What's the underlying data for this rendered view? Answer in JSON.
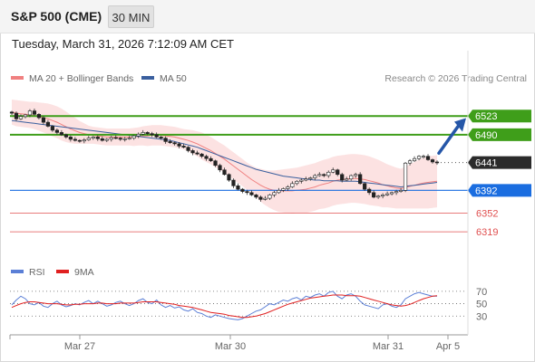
{
  "header": {
    "symbol": "S&P 500 (CME)",
    "timeframe": "30 MIN"
  },
  "datetime": "Tuesday, March 31, 2026 7:12:09 AM CET",
  "credit": "Research © 2026 Trading Central",
  "colors": {
    "bollinger": "#f08080",
    "ma50": "#3a5f9e",
    "resistance": "#3f9e1a",
    "pivot": "#1a6de0",
    "support": "#e05050",
    "last": "#2b2b2b",
    "arrow": "#2556a8",
    "rsi": "#5b7fd6",
    "rsi_ma": "#e02020"
  },
  "chart_data": [
    {
      "type": "candlestick",
      "legend": [
        {
          "name": "MA 20 + Bollinger Bands",
          "color": "#f08080"
        },
        {
          "name": "MA 50",
          "color": "#3a5f9e"
        }
      ],
      "x_ticks": [
        "Mar 27",
        "Mar 30",
        "Mar 31",
        "Apr 5"
      ],
      "ylim": [
        6300,
        6560
      ],
      "close": [
        6528,
        6518,
        6522,
        6525,
        6532,
        6526,
        6520,
        6512,
        6505,
        6498,
        6494,
        6490,
        6486,
        6482,
        6480,
        6479,
        6481,
        6484,
        6486,
        6483,
        6480,
        6482,
        6485,
        6484,
        6482,
        6483,
        6484,
        6488,
        6491,
        6494,
        6492,
        6490,
        6486,
        6484,
        6478,
        6476,
        6474,
        6470,
        6468,
        6462,
        6458,
        6456,
        6452,
        6448,
        6444,
        6436,
        6428,
        6420,
        6410,
        6400,
        6394,
        6390,
        6388,
        6384,
        6380,
        6376,
        6378,
        6384,
        6388,
        6392,
        6395,
        6398,
        6404,
        6408,
        6410,
        6412,
        6414,
        6418,
        6420,
        6418,
        6424,
        6428,
        6420,
        6410,
        6412,
        6418,
        6420,
        6404,
        6394,
        6388,
        6380,
        6382,
        6384,
        6386,
        6388,
        6390,
        6392,
        6440,
        6444,
        6448,
        6452,
        6452,
        6446,
        6442,
        6441
      ],
      "ma20_bollinger": {
        "ma20": [
          6530,
          6528,
          6527,
          6526,
          6525,
          6524,
          6522,
          6520,
          6518,
          6515,
          6512,
          6508,
          6504,
          6500,
          6497,
          6494,
          6492,
          6490,
          6489,
          6488,
          6487,
          6486,
          6486,
          6486,
          6486,
          6486,
          6486,
          6486,
          6487,
          6488,
          6488,
          6489,
          6489,
          6489,
          6488,
          6487,
          6486,
          6484,
          6482,
          6480,
          6477,
          6474,
          6470,
          6466,
          6462,
          6457,
          6452,
          6447,
          6441,
          6435,
          6429,
          6423,
          6417,
          6411,
          6406,
          6401,
          6397,
          6394,
          6392,
          6391,
          6391,
          6391,
          6391,
          6392,
          6393,
          6394,
          6396,
          6398,
          6401,
          6403,
          6405,
          6408,
          6410,
          6411,
          6412,
          6413,
          6413,
          6412,
          6411,
          6409,
          6407,
          6405,
          6402,
          6400,
          6398,
          6396,
          6395,
          6397,
          6399,
          6401,
          6403,
          6405,
          6406,
          6407,
          6408
        ],
        "upper": [
          6552,
          6551,
          6550,
          6549,
          6548,
          6548,
          6547,
          6546,
          6545,
          6543,
          6540,
          6536,
          6531,
          6525,
          6520,
          6514,
          6510,
          6506,
          6504,
          6503,
          6502,
          6501,
          6501,
          6501,
          6501,
          6501,
          6501,
          6502,
          6503,
          6505,
          6506,
          6507,
          6507,
          6507,
          6506,
          6505,
          6504,
          6502,
          6500,
          6499,
          6498,
          6496,
          6494,
          6490,
          6486,
          6481,
          6476,
          6471,
          6465,
          6459,
          6453,
          6447,
          6441,
          6436,
          6432,
          6430,
          6428,
          6427,
          6427,
          6428,
          6429,
          6430,
          6431,
          6432,
          6434,
          6436,
          6438,
          6440,
          6443,
          6446,
          6448,
          6451,
          6453,
          6454,
          6455,
          6456,
          6456,
          6455,
          6454,
          6452,
          6449,
          6446,
          6442,
          6438,
          6435,
          6432,
          6430,
          6434,
          6438,
          6442,
          6446,
          6450,
          6452,
          6453,
          6454
        ],
        "lower": [
          6508,
          6505,
          6504,
          6503,
          6502,
          6500,
          6497,
          6494,
          6491,
          6487,
          6484,
          6480,
          6477,
          6475,
          6474,
          6474,
          6474,
          6474,
          6474,
          6473,
          6472,
          6471,
          6471,
          6471,
          6471,
          6471,
          6471,
          6470,
          6471,
          6471,
          6470,
          6471,
          6471,
          6471,
          6470,
          6469,
          6468,
          6466,
          6464,
          6461,
          6456,
          6452,
          6446,
          6442,
          6438,
          6433,
          6428,
          6423,
          6417,
          6411,
          6405,
          6399,
          6393,
          6386,
          6380,
          6372,
          6366,
          6361,
          6357,
          6354,
          6353,
          6352,
          6351,
          6352,
          6352,
          6352,
          6354,
          6356,
          6359,
          6360,
          6362,
          6365,
          6367,
          6368,
          6369,
          6370,
          6370,
          6369,
          6368,
          6366,
          6365,
          6364,
          6362,
          6362,
          6361,
          6360,
          6360,
          6360,
          6360,
          6360,
          6360,
          6360,
          6360,
          6361,
          6362
        ]
      },
      "ma50": [
        6515,
        6514,
        6513,
        6512,
        6511,
        6510,
        6509,
        6508,
        6507,
        6506,
        6505,
        6504,
        6503,
        6502,
        6501,
        6500,
        6499,
        6498,
        6497,
        6496,
        6495,
        6494,
        6493,
        6492,
        6491,
        6490,
        6489,
        6488,
        6487,
        6486,
        6485,
        6484,
        6483,
        6482,
        6481,
        6480,
        6478,
        6476,
        6474,
        6472,
        6470,
        6468,
        6465,
        6462,
        6459,
        6456,
        6453,
        6450,
        6447,
        6444,
        6441,
        6438,
        6435,
        6432,
        6429,
        6427,
        6425,
        6423,
        6421,
        6419,
        6417,
        6416,
        6415,
        6414,
        6413,
        6412,
        6411,
        6410,
        6410,
        6409,
        6409,
        6409,
        6409,
        6408,
        6408,
        6408,
        6408,
        6407,
        6406,
        6405,
        6404,
        6403,
        6402,
        6401,
        6400,
        6399,
        6398,
        6399,
        6400,
        6401,
        6402,
        6403,
        6404,
        6405,
        6406
      ],
      "levels": [
        {
          "value": 6523,
          "label": "6523",
          "type": "resistance"
        },
        {
          "value": 6490,
          "label": "6490",
          "type": "resistance"
        },
        {
          "value": 6441,
          "label": "6441",
          "type": "last"
        },
        {
          "value": 6392,
          "label": "6392",
          "type": "pivot"
        },
        {
          "value": 6352,
          "label": "6352",
          "type": "support"
        },
        {
          "value": 6319,
          "label": "6319",
          "type": "support"
        }
      ],
      "arrow": {
        "from": 6448,
        "to": 6521,
        "direction": "up"
      }
    },
    {
      "type": "line",
      "legend": [
        {
          "name": "RSI",
          "color": "#5b7fd6"
        },
        {
          "name": "9MA",
          "color": "#e02020"
        }
      ],
      "ylim": [
        10,
        80
      ],
      "y_ticks": [
        "70",
        "50",
        "30"
      ],
      "series": [
        {
          "name": "RSI",
          "values": [
            48,
            56,
            62,
            58,
            50,
            48,
            52,
            46,
            44,
            50,
            54,
            48,
            45,
            47,
            50,
            48,
            52,
            55,
            50,
            54,
            50,
            46,
            48,
            52,
            54,
            50,
            47,
            50,
            55,
            58,
            52,
            50,
            56,
            48,
            44,
            47,
            43,
            45,
            40,
            38,
            42,
            36,
            34,
            30,
            28,
            32,
            30,
            28,
            26,
            25,
            24,
            26,
            30,
            34,
            38,
            40,
            45,
            50,
            48,
            52,
            56,
            54,
            58,
            60,
            56,
            62,
            60,
            64,
            66,
            62,
            68,
            70,
            62,
            58,
            64,
            66,
            62,
            54,
            48,
            46,
            44,
            42,
            48,
            50,
            46,
            44,
            48,
            58,
            62,
            66,
            68,
            66,
            64,
            62,
            62
          ]
        },
        {
          "name": "9MA",
          "values": [
            44,
            47,
            50,
            52,
            53,
            53,
            52,
            51,
            50,
            50,
            50,
            49,
            48,
            48,
            49,
            49,
            50,
            50,
            50,
            51,
            51,
            50,
            50,
            50,
            51,
            51,
            51,
            51,
            52,
            53,
            53,
            53,
            53,
            52,
            51,
            50,
            49,
            47,
            46,
            45,
            44,
            42,
            40,
            38,
            36,
            35,
            34,
            33,
            31,
            30,
            29,
            28,
            28,
            29,
            30,
            32,
            34,
            37,
            40,
            43,
            46,
            49,
            51,
            53,
            55,
            57,
            59,
            60,
            61,
            62,
            63,
            64,
            64,
            64,
            63,
            63,
            63,
            62,
            60,
            58,
            56,
            54,
            52,
            50,
            48,
            47,
            46,
            47,
            49,
            52,
            55,
            58,
            60,
            62,
            63
          ]
        }
      ]
    }
  ]
}
